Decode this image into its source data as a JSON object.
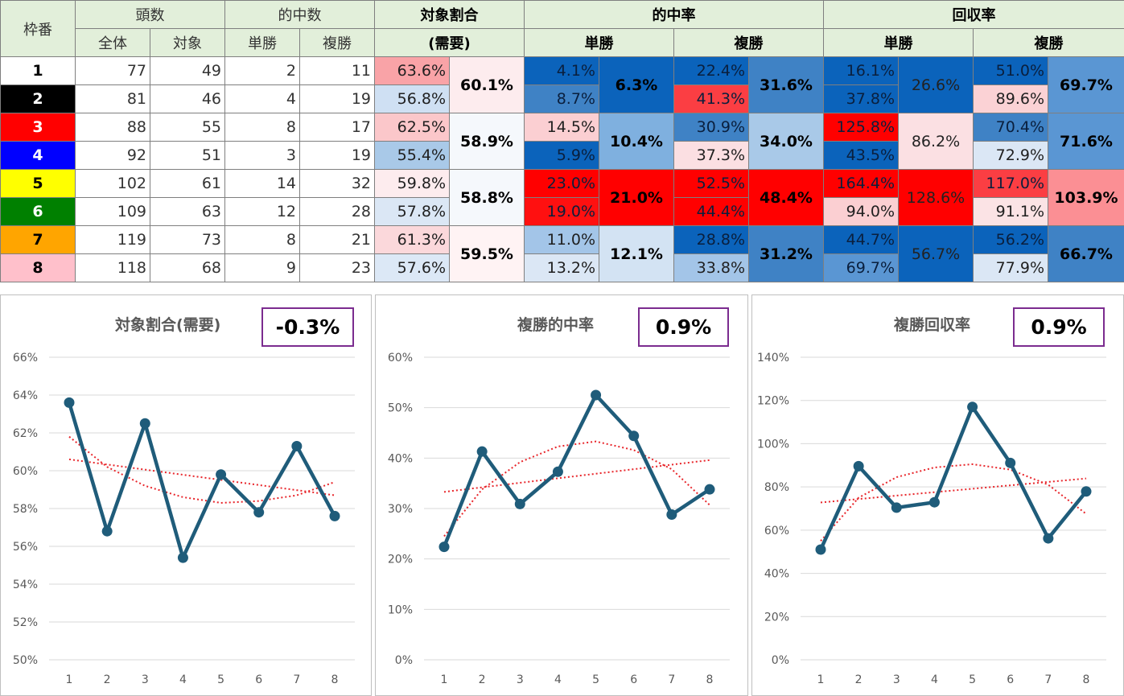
{
  "table": {
    "headers": {
      "gate": "枠番",
      "count": "頭数",
      "count_all": "全体",
      "count_target": "対象",
      "hits": "的中数",
      "hits_win": "単勝",
      "hits_place": "複勝",
      "target_ratio_1": "対象割合",
      "target_ratio_2": "(需要)",
      "hit_rate": "的中率",
      "hit_rate_win": "単勝",
      "hit_rate_place": "複勝",
      "return_rate": "回収率",
      "return_rate_win": "単勝",
      "return_rate_place": "複勝"
    },
    "gate_colors": [
      {
        "bg": "#ffffff",
        "fg": "#000000"
      },
      {
        "bg": "#000000",
        "fg": "#ffffff"
      },
      {
        "bg": "#ff0000",
        "fg": "#ffffff"
      },
      {
        "bg": "#0000ff",
        "fg": "#ffffff"
      },
      {
        "bg": "#ffff00",
        "fg": "#000000"
      },
      {
        "bg": "#008000",
        "fg": "#ffffff"
      },
      {
        "bg": "#ffa500",
        "fg": "#000000"
      },
      {
        "bg": "#ffc0cb",
        "fg": "#000000"
      }
    ],
    "rows": [
      {
        "gate": "1",
        "all": "77",
        "target": "49",
        "win": "2",
        "place": "11",
        "ratio": "63.6%",
        "hr_win": "4.1%",
        "hr_place": "22.4%",
        "rr_win": "16.1%",
        "rr_place": "51.0%"
      },
      {
        "gate": "2",
        "all": "81",
        "target": "46",
        "win": "4",
        "place": "19",
        "ratio": "56.8%",
        "hr_win": "8.7%",
        "hr_place": "41.3%",
        "rr_win": "37.8%",
        "rr_place": "89.6%"
      },
      {
        "gate": "3",
        "all": "88",
        "target": "55",
        "win": "8",
        "place": "17",
        "ratio": "62.5%",
        "hr_win": "14.5%",
        "hr_place": "30.9%",
        "rr_win": "125.8%",
        "rr_place": "70.4%"
      },
      {
        "gate": "4",
        "all": "92",
        "target": "51",
        "win": "3",
        "place": "19",
        "ratio": "55.4%",
        "hr_win": "5.9%",
        "hr_place": "37.3%",
        "rr_win": "43.5%",
        "rr_place": "72.9%"
      },
      {
        "gate": "5",
        "all": "102",
        "target": "61",
        "win": "14",
        "place": "32",
        "ratio": "59.8%",
        "hr_win": "23.0%",
        "hr_place": "52.5%",
        "rr_win": "164.4%",
        "rr_place": "117.0%"
      },
      {
        "gate": "6",
        "all": "109",
        "target": "63",
        "win": "12",
        "place": "28",
        "ratio": "57.8%",
        "hr_win": "19.0%",
        "hr_place": "44.4%",
        "rr_win": "94.0%",
        "rr_place": "91.1%"
      },
      {
        "gate": "7",
        "all": "119",
        "target": "73",
        "win": "8",
        "place": "21",
        "ratio": "61.3%",
        "hr_win": "11.0%",
        "hr_place": "28.8%",
        "rr_win": "44.7%",
        "rr_place": "56.2%"
      },
      {
        "gate": "8",
        "all": "118",
        "target": "68",
        "win": "9",
        "place": "23",
        "ratio": "57.6%",
        "hr_win": "13.2%",
        "hr_place": "33.8%",
        "rr_win": "69.7%",
        "rr_place": "77.9%"
      }
    ],
    "pairs": [
      {
        "ratio": "60.1%",
        "hr_win": "6.3%",
        "hr_place": "31.6%",
        "rr_win": "26.6%",
        "rr_place": "69.7%"
      },
      {
        "ratio": "58.9%",
        "hr_win": "10.4%",
        "hr_place": "34.0%",
        "rr_win": "86.2%",
        "rr_place": "71.6%"
      },
      {
        "ratio": "58.8%",
        "hr_win": "21.0%",
        "hr_place": "48.4%",
        "rr_win": "128.6%",
        "rr_place": "103.9%"
      },
      {
        "ratio": "59.5%",
        "hr_win": "12.1%",
        "hr_place": "31.2%",
        "rr_win": "56.7%",
        "rr_place": "66.7%"
      }
    ],
    "cell_colors": {
      "ratio": [
        "#f9a3a7",
        "#cfe0f3",
        "#fbc7ca",
        "#a9c9e8",
        "#fdecee",
        "#dbe7f5",
        "#fbd8db",
        "#dce8f6"
      ],
      "ratio_pair": [
        "#fdecee",
        "#f5f8fc",
        "#f5f8fc",
        "#fff3f4"
      ],
      "hr_win": [
        "#0b63bb",
        "#3f82c5",
        "#fbcfd2",
        "#0b63bb",
        "#ff0000",
        "#ff1010",
        "#a3c5e8",
        "#dbe7f5"
      ],
      "hr_win_pair": [
        "#0b63bb",
        "#7fb0df",
        "#ff0000",
        "#d3e3f3"
      ],
      "hr_place": [
        "#0b63bb",
        "#fb3e43",
        "#3f82c5",
        "#fbdfe2",
        "#ff0000",
        "#ff0000",
        "#0b63bb",
        "#a3c5e8"
      ],
      "hr_place_pair": [
        "#3f82c5",
        "#a9c9e8",
        "#ff0000",
        "#3f82c5"
      ],
      "rr_win": [
        "#0b63bb",
        "#0b63bb",
        "#ff0000",
        "#0b63bb",
        "#ff0000",
        "#fbcfd2",
        "#0b63bb",
        "#5a96d3"
      ],
      "rr_win_pair": [
        "#0b63bb",
        "#fbe0e3",
        "#ff0000",
        "#0b63bb"
      ],
      "rr_place": [
        "#0b63bb",
        "#fbd2d5",
        "#3f82c5",
        "#dbe7f5",
        "#fb3e43",
        "#fbe3e5",
        "#0b63bb",
        "#dbe7f5"
      ],
      "rr_place_pair": [
        "#5a96d3",
        "#5a96d3",
        "#fb8f94",
        "#3f82c5"
      ]
    }
  },
  "charts": {
    "line_color": "#1f5c7a",
    "trend_color": "#e8262b",
    "badge_border": "#7b2c8f"
  },
  "chart_data": [
    {
      "type": "line",
      "title": "対象割合(需要)",
      "badge": "-0.3%",
      "categories": [
        "1",
        "2",
        "3",
        "4",
        "5",
        "6",
        "7",
        "8"
      ],
      "values": [
        63.6,
        56.8,
        62.5,
        55.4,
        59.8,
        57.8,
        61.3,
        57.6
      ],
      "yticks": [
        "66%",
        "64%",
        "62%",
        "60%",
        "58%",
        "56%",
        "54%",
        "52%",
        "50%"
      ],
      "ylim": [
        50,
        66
      ],
      "trend_linear": [
        60.6,
        58.7
      ],
      "trend_poly": [
        61.8,
        60.2,
        59.2,
        58.6,
        58.3,
        58.4,
        58.7,
        59.4
      ]
    },
    {
      "type": "line",
      "title": "複勝的中率",
      "badge": "0.9%",
      "categories": [
        "1",
        "2",
        "3",
        "4",
        "5",
        "6",
        "7",
        "8"
      ],
      "values": [
        22.4,
        41.3,
        30.9,
        37.3,
        52.5,
        44.4,
        28.8,
        33.8
      ],
      "yticks": [
        "60%",
        "50%",
        "40%",
        "30%",
        "20%",
        "10%",
        "0%"
      ],
      "ylim": [
        0,
        60
      ],
      "trend_linear": [
        33.3,
        39.6
      ],
      "trend_poly": [
        24.5,
        33.8,
        39.2,
        42.3,
        43.3,
        41.6,
        37.8,
        30.7
      ]
    },
    {
      "type": "line",
      "title": "複勝回収率",
      "badge": "0.9%",
      "categories": [
        "1",
        "2",
        "3",
        "4",
        "5",
        "6",
        "7",
        "8"
      ],
      "values": [
        51.0,
        89.6,
        70.4,
        72.9,
        117.0,
        91.1,
        56.2,
        77.9
      ],
      "yticks": [
        "140%",
        "120%",
        "100%",
        "80%",
        "60%",
        "40%",
        "20%",
        "0%"
      ],
      "ylim": [
        0,
        140
      ],
      "trend_linear": [
        72.8,
        83.9
      ],
      "trend_poly": [
        55.0,
        75.0,
        84.5,
        89.0,
        90.5,
        88.0,
        81.0,
        67.5
      ]
    }
  ]
}
